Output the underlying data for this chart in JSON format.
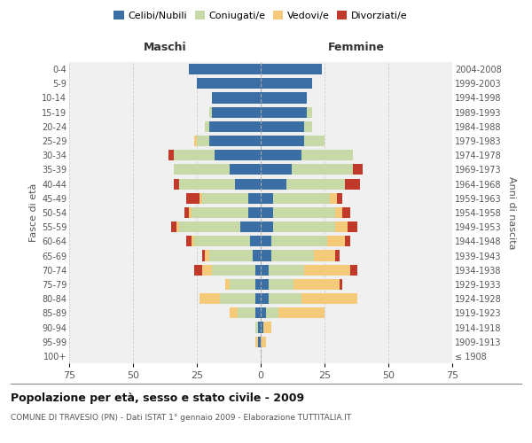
{
  "age_groups": [
    "100+",
    "95-99",
    "90-94",
    "85-89",
    "80-84",
    "75-79",
    "70-74",
    "65-69",
    "60-64",
    "55-59",
    "50-54",
    "45-49",
    "40-44",
    "35-39",
    "30-34",
    "25-29",
    "20-24",
    "15-19",
    "10-14",
    "5-9",
    "0-4"
  ],
  "birth_years": [
    "≤ 1908",
    "1909-1913",
    "1914-1918",
    "1919-1923",
    "1924-1928",
    "1929-1933",
    "1934-1938",
    "1939-1943",
    "1944-1948",
    "1949-1953",
    "1954-1958",
    "1959-1963",
    "1964-1968",
    "1969-1973",
    "1974-1978",
    "1979-1983",
    "1984-1988",
    "1989-1993",
    "1994-1998",
    "1999-2003",
    "2004-2008"
  ],
  "maschi_celibi": [
    0,
    1,
    1,
    2,
    2,
    2,
    2,
    3,
    4,
    8,
    5,
    5,
    10,
    12,
    18,
    20,
    20,
    19,
    19,
    25,
    28
  ],
  "maschi_coniugati": [
    0,
    0,
    1,
    7,
    14,
    10,
    17,
    17,
    22,
    24,
    22,
    18,
    22,
    22,
    16,
    5,
    2,
    1,
    0,
    0,
    0
  ],
  "maschi_vedovi": [
    0,
    1,
    0,
    3,
    8,
    2,
    4,
    2,
    1,
    1,
    1,
    1,
    0,
    0,
    0,
    1,
    0,
    0,
    0,
    0,
    0
  ],
  "maschi_divorziati": [
    0,
    0,
    0,
    0,
    0,
    0,
    3,
    1,
    2,
    2,
    2,
    5,
    2,
    0,
    2,
    0,
    0,
    0,
    0,
    0,
    0
  ],
  "femmine_celibi": [
    0,
    0,
    1,
    2,
    3,
    3,
    3,
    4,
    4,
    5,
    5,
    5,
    10,
    12,
    16,
    17,
    17,
    18,
    18,
    20,
    24
  ],
  "femmine_coniugati": [
    0,
    0,
    0,
    5,
    13,
    10,
    14,
    17,
    22,
    24,
    24,
    22,
    23,
    24,
    20,
    8,
    3,
    2,
    0,
    0,
    0
  ],
  "femmine_vedovi": [
    0,
    2,
    3,
    18,
    22,
    18,
    18,
    8,
    7,
    5,
    3,
    3,
    0,
    0,
    0,
    0,
    0,
    0,
    0,
    0,
    0
  ],
  "femmine_divorziati": [
    0,
    0,
    0,
    0,
    0,
    1,
    3,
    2,
    2,
    4,
    3,
    2,
    6,
    4,
    0,
    0,
    0,
    0,
    0,
    0,
    0
  ],
  "colors": {
    "celibi": "#3a6ea5",
    "coniugati": "#c8d9a8",
    "vedovi": "#f5c97a",
    "divorziati": "#c0392b"
  },
  "title": "Popolazione per età, sesso e stato civile - 2009",
  "subtitle": "COMUNE DI TRAVESIO (PN) - Dati ISTAT 1° gennaio 2009 - Elaborazione TUTTITALIA.IT",
  "xlabel_left": "Maschi",
  "xlabel_right": "Femmine",
  "ylabel_left": "Fasce di età",
  "ylabel_right": "Anni di nascita",
  "xlim": 75,
  "bg_color": "#ffffff",
  "plot_bg": "#f0f0f0",
  "grid_color": "#cccccc",
  "legend_labels": [
    "Celibi/Nubili",
    "Coniugati/e",
    "Vedovi/e",
    "Divorziati/e"
  ]
}
